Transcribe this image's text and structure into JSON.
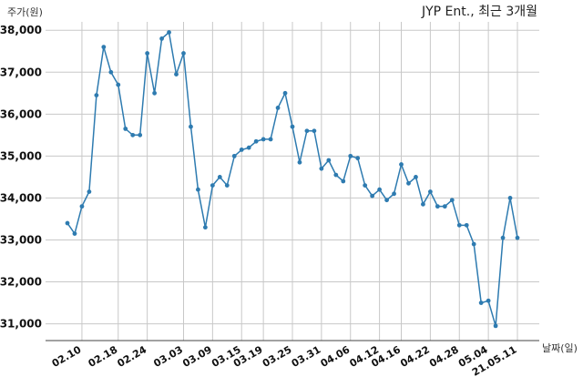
{
  "chart_data": {
    "type": "line",
    "title": "JYP Ent., 최근 3개월",
    "xlabel": "날짜(일)",
    "ylabel": "주가(원)",
    "ylim": [
      30600,
      38200
    ],
    "yticks": [
      31000,
      32000,
      33000,
      34000,
      35000,
      36000,
      37000,
      38000
    ],
    "ytick_labels": [
      "31,000",
      "32,000",
      "33,000",
      "34,000",
      "35,000",
      "36,000",
      "37,000",
      "38,000"
    ],
    "xtick_labels": [
      "02.10",
      "02.18",
      "02.24",
      "03.03",
      "03.09",
      "03.15",
      "03.19",
      "03.25",
      "03.31",
      "04.06",
      "04.12",
      "04.16",
      "04.22",
      "04.28",
      "05.04",
      "21.05.11"
    ],
    "xtick_index": [
      2,
      7,
      11,
      16,
      20,
      24,
      27,
      31,
      35,
      39,
      43,
      46,
      50,
      54,
      58,
      62
    ],
    "grid": true,
    "line_color": "#2e7bb0",
    "series": [
      {
        "values": [
          33400,
          33150,
          33800,
          34150,
          36450,
          37600,
          37000,
          36700,
          35650,
          35500,
          35500,
          37450,
          36500,
          37800,
          37950,
          36950,
          37450,
          35700,
          34200,
          33300,
          34300,
          34500,
          34300,
          35000,
          35150,
          35200,
          35350,
          35400,
          35400,
          36150,
          36500,
          35700,
          34850,
          35600,
          35600,
          34700,
          34900,
          34550,
          34400,
          35000,
          34950,
          34300,
          34050,
          34200,
          33950,
          34100,
          34800,
          34350,
          34500,
          33850,
          34150,
          33800,
          33800,
          33950,
          33350,
          33350,
          32900,
          31500,
          31550,
          30950,
          33050,
          34000,
          33050
        ]
      }
    ]
  }
}
